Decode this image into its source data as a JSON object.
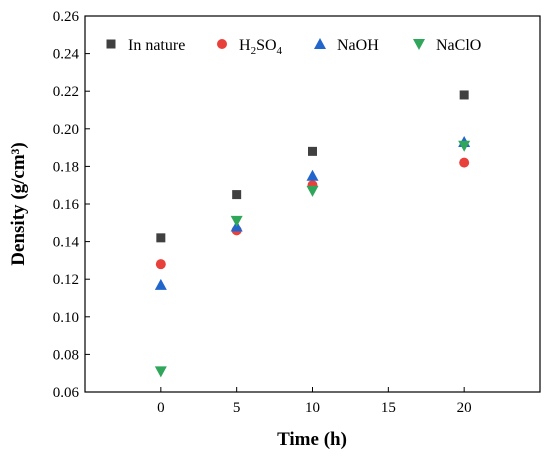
{
  "chart_data": {
    "type": "scatter",
    "title": "",
    "xlabel": "Time (h)",
    "ylabel": "Density (g/cm³)",
    "xlim": [
      -5,
      25
    ],
    "ylim": [
      0.06,
      0.26
    ],
    "xticks": [
      0,
      5,
      10,
      15,
      20
    ],
    "yticks": [
      0.06,
      0.08,
      0.1,
      0.12,
      0.14,
      0.16,
      0.18,
      0.2,
      0.22,
      0.24,
      0.26
    ],
    "legend_position": "top",
    "grid": false,
    "series": [
      {
        "name": "In nature",
        "marker": "square",
        "color": "#404040",
        "x": [
          0,
          5,
          10,
          20
        ],
        "y": [
          0.142,
          0.165,
          0.188,
          0.218
        ]
      },
      {
        "name": "H2SO4",
        "name_parts": [
          "H",
          "2",
          "SO",
          "4"
        ],
        "marker": "circle",
        "color": "#e8413c",
        "x": [
          0,
          5,
          10,
          20
        ],
        "y": [
          0.128,
          0.146,
          0.17,
          0.182
        ]
      },
      {
        "name": "NaOH",
        "marker": "triangle-up",
        "color": "#2266cc",
        "x": [
          0,
          5,
          10,
          20
        ],
        "y": [
          0.117,
          0.148,
          0.175,
          0.193
        ]
      },
      {
        "name": "NaClO",
        "marker": "triangle-down",
        "color": "#2fa65a",
        "x": [
          0,
          5,
          10,
          20
        ],
        "y": [
          0.071,
          0.151,
          0.167,
          0.191
        ]
      }
    ]
  }
}
